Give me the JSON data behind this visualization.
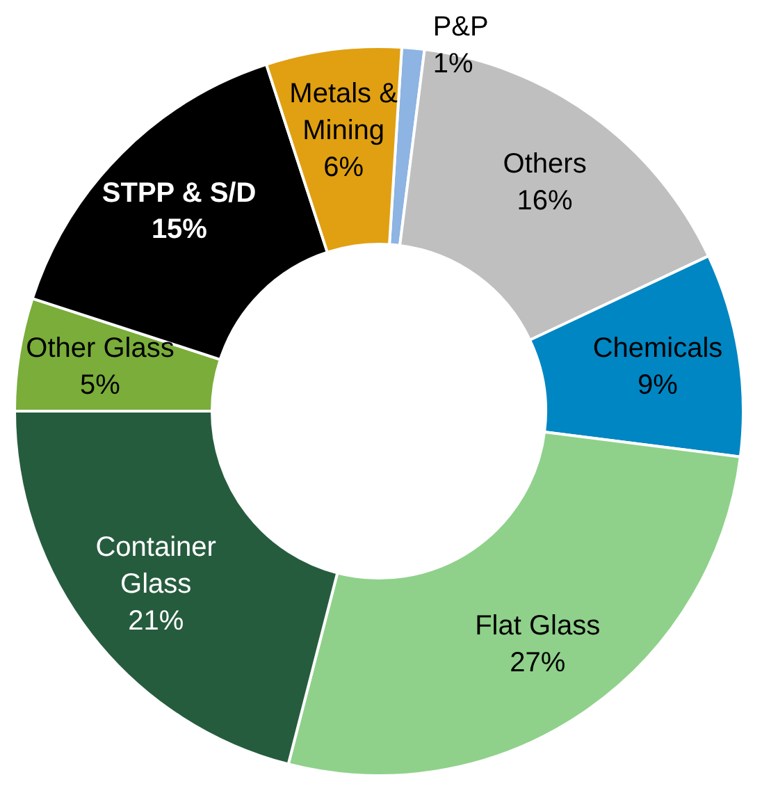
{
  "chart_data": {
    "type": "donut",
    "categories": [
      "P&P",
      "Others",
      "Chemicals",
      "Flat Glass",
      "Container Glass",
      "Other Glass",
      "STPP & S/D",
      "Metals & Mining"
    ],
    "values": [
      1,
      16,
      9,
      27,
      21,
      5,
      15,
      6
    ],
    "colors": [
      "#8db4e2",
      "#bfbfbf",
      "#0086c3",
      "#8fd18a",
      "#265c3e",
      "#7aad3a",
      "#000000",
      "#e0a012"
    ],
    "value_labels": [
      "1%",
      "16%",
      "9%",
      "27%",
      "21%",
      "5%",
      "15%",
      "6%"
    ]
  }
}
